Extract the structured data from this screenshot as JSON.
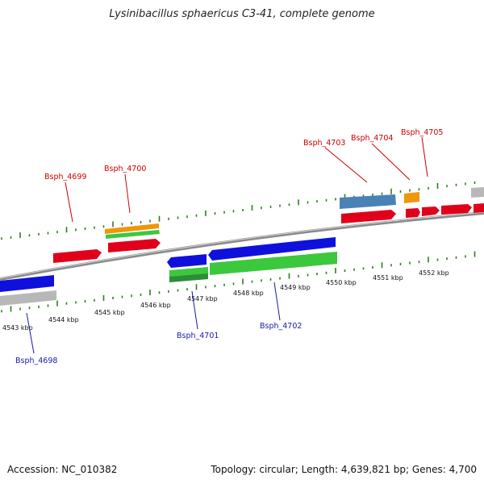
{
  "title": "Lysinibacillus sphaericus C3-41, complete genome",
  "footer": {
    "accession": "Accession: NC_010382",
    "summary": "Topology: circular; Length: 4,639,821 bp; Genes: 4,700"
  },
  "colors": {
    "backbone": "#8a8a8a",
    "tick": "#2e7d1e",
    "forward_label": "#cc0000",
    "reverse_label": "#1a1aa8",
    "gene_red": "#e0001a",
    "gene_blue": "#1010dd",
    "gene_green": "#3cc83c",
    "gene_dark_green": "#2e8b3a",
    "gene_orange": "#f0960a",
    "gene_steel": "#4a82b6",
    "gene_gray": "#b8b8b8"
  },
  "scale_labels": [
    "4543 kbp",
    "4544 kbp",
    "4545 kbp",
    "4546 kbp",
    "4547 kbp",
    "4548 kbp",
    "4549 kbp",
    "4550 kbp",
    "4551 kbp",
    "4552 kbp"
  ],
  "gene_labels": [
    {
      "text": "Bsph_4699",
      "strand": "forward"
    },
    {
      "text": "Bsph_4700",
      "strand": "forward"
    },
    {
      "text": "Bsph_4703",
      "strand": "forward"
    },
    {
      "text": "Bsph_4704",
      "strand": "forward"
    },
    {
      "text": "Bsph_4705",
      "strand": "forward"
    },
    {
      "text": "Bsph_4698",
      "strand": "reverse"
    },
    {
      "text": "Bsph_4701",
      "strand": "reverse"
    },
    {
      "text": "Bsph_4702",
      "strand": "reverse"
    }
  ]
}
